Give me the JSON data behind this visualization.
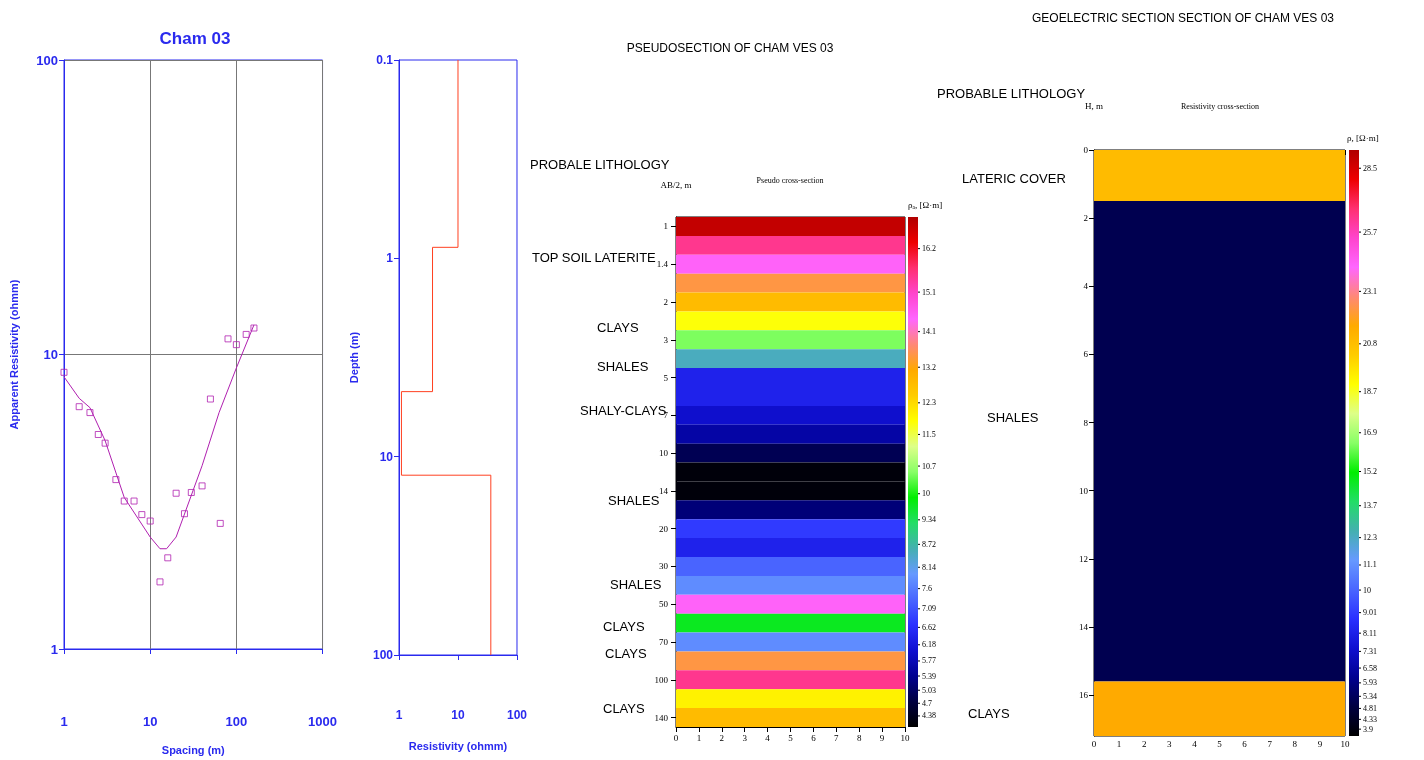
{
  "chart_data": [
    {
      "type": "scatter",
      "title": "Cham 03",
      "xlabel": "Spacing (m)",
      "ylabel": "Apparent Resistivity (ohmm)",
      "log": "xy",
      "xlim": [
        1,
        1000
      ],
      "xticks": [
        1,
        10,
        100,
        1000
      ],
      "ylim": [
        1,
        100
      ],
      "yticks": [
        1,
        10,
        100
      ],
      "grid": true,
      "series": [
        {
          "type": "scatter",
          "marker": "square",
          "color": "#b020b0",
          "x": [
            1,
            1.5,
            2,
            2.5,
            3,
            4,
            5,
            6.5,
            8,
            10,
            13,
            16,
            20,
            25,
            30,
            40,
            50,
            65,
            80,
            100,
            130,
            160
          ],
          "values": [
            8.7,
            6.65,
            6.35,
            5.35,
            5.0,
            3.76,
            3.18,
            3.18,
            2.86,
            2.72,
            1.69,
            2.04,
            3.38,
            2.88,
            3.4,
            3.58,
            7.06,
            2.67,
            11.3,
            10.8,
            11.7,
            12.3
          ]
        },
        {
          "type": "line",
          "marker": "none",
          "color": "#b020b0",
          "x": [
            1,
            1.5,
            2,
            3,
            5,
            10,
            13,
            15.5,
            20,
            40,
            63,
            100,
            160
          ],
          "values": [
            8.4,
            7.1,
            6.6,
            5.1,
            3.27,
            2.4,
            2.19,
            2.19,
            2.4,
            4.19,
            6.35,
            9.0,
            12.6
          ]
        }
      ]
    },
    {
      "type": "line",
      "xlabel": "Resistivity (ohmm)",
      "ylabel": "Depth (m)",
      "log": "xy",
      "xlim": [
        1,
        100
      ],
      "xticks": [
        1,
        10,
        100
      ],
      "ylim": [
        100,
        0.1
      ],
      "yticks": [
        0.1,
        1,
        10,
        100
      ],
      "marker": "none",
      "series": [
        {
          "color": "#ff4020",
          "x": [
            10,
            10,
            3.7,
            3.7,
            1.1,
            1.1,
            36,
            36
          ],
          "values": [
            0.1,
            0.88,
            0.88,
            4.7,
            4.7,
            12.4,
            12.4,
            100
          ]
        }
      ]
    },
    {
      "type": "heatmap",
      "title": "PSEUDOSECTION OF CHAM VES 03",
      "subtitle": "Pseudo cross-section",
      "ylabel": "AB/2, m",
      "clabel": "ρₐ, [Ω·m]",
      "clim": [
        4.1,
        17.0
      ],
      "xlim": [
        0,
        10
      ],
      "xticks": [
        0,
        1,
        2,
        3,
        4,
        5,
        6,
        7,
        8,
        9,
        10
      ],
      "y_categories": [
        "1",
        null,
        "1.4",
        null,
        "2",
        null,
        "3",
        null,
        "5",
        null,
        "7",
        null,
        "10",
        null,
        "14",
        null,
        "20",
        null,
        "30",
        null,
        "50",
        null,
        "70",
        null,
        "100",
        null,
        "140"
      ],
      "cells": [
        [
          16.8
        ],
        [
          15.5
        ],
        [
          14.5
        ],
        [
          13.5
        ],
        [
          12.8
        ],
        [
          11.8
        ],
        [
          10.5
        ],
        [
          8.5
        ],
        [
          6.4
        ],
        [
          6.4
        ],
        [
          6.0
        ],
        [
          5.6
        ],
        [
          4.9
        ],
        [
          4.2
        ],
        [
          4.2
        ],
        [
          5.2
        ],
        [
          6.8
        ],
        [
          6.4
        ],
        [
          7.3
        ],
        [
          7.8
        ],
        [
          14.5
        ],
        [
          9.7
        ],
        [
          7.8
        ],
        [
          13.5
        ],
        [
          15.5
        ],
        [
          12.0
        ],
        [
          12.8
        ]
      ],
      "cticks": [
        4.38,
        4.7,
        5.03,
        5.39,
        5.77,
        6.18,
        6.62,
        7.09,
        7.6,
        8.14,
        8.72,
        9.34,
        10,
        10.7,
        11.5,
        12.3,
        13.2,
        14.1,
        15.1,
        16.2
      ],
      "annotations": [
        "PROBALE LITHOLOGY",
        "TOP SOIL LATERITE",
        "CLAYS",
        "SHALES",
        "SHALY-CLAYS",
        "SHALES",
        "SHALES",
        "CLAYS",
        "CLAYS",
        "CLAYS"
      ]
    },
    {
      "type": "bar",
      "stacked": true,
      "title": "GEOELECTRIC SECTION SECTION OF CHAM VES 03",
      "subtitle": "Resistivity cross-section",
      "ylabel": "H, m",
      "clabel": "ρ, [Ω·m]",
      "clim": [
        3.6,
        29.3
      ],
      "x": [
        5
      ],
      "xlim": [
        0,
        10
      ],
      "xticks": [
        0,
        1,
        2,
        3,
        4,
        5,
        6,
        7,
        8,
        9,
        10
      ],
      "ylim": [
        17.2,
        0
      ],
      "yticks": [
        0,
        2,
        4,
        6,
        8,
        10,
        12,
        14,
        16
      ],
      "cticks": [
        3.9,
        4.33,
        4.81,
        5.34,
        5.93,
        6.58,
        7.31,
        8.11,
        9.01,
        10,
        11.1,
        12.3,
        13.7,
        15.2,
        16.9,
        18.7,
        20.8,
        23.1,
        25.7,
        28.5
      ],
      "series": [
        {
          "color": "#ffbb00",
          "values": [
            1.5
          ]
        },
        {
          "color": "#000050",
          "values": [
            14.1
          ]
        },
        {
          "color": "#ffaa00",
          "values": [
            1.6
          ]
        }
      ],
      "annotations": [
        "PROBABLE LITHOLOGY",
        "LATERIC COVER",
        "SHALES",
        "CLAYS"
      ]
    }
  ]
}
